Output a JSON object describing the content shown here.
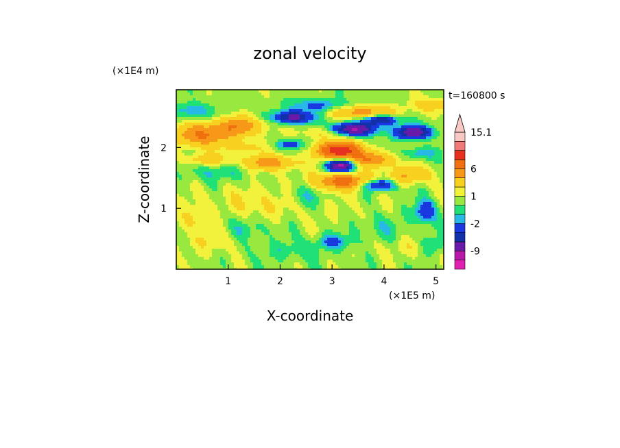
{
  "chart_data": {
    "type": "heatmap",
    "title": "zonal velocity",
    "xlabel": "X-coordinate",
    "ylabel": "Z-coordinate",
    "x_scale_label": "(×1E5 m)",
    "y_scale_label": "(×1E4 m)",
    "time_label": "t=160800 s",
    "x_ticks": [
      "1",
      "2",
      "3",
      "4",
      "5"
    ],
    "y_ticks": [
      "1",
      "2"
    ],
    "xlim": [
      0,
      5.15
    ],
    "ylim": [
      0,
      2.95
    ],
    "colorbar": {
      "levels": [
        -15.1,
        -12,
        -9,
        -6,
        -4,
        -2,
        -1,
        0,
        1,
        2,
        4,
        6,
        9,
        12,
        15.1
      ],
      "colors": [
        "#e020b0",
        "#b818a8",
        "#6a1aa8",
        "#1230a8",
        "#1a38e0",
        "#28b8e8",
        "#20e078",
        "#98e840",
        "#f2f23c",
        "#f8d020",
        "#f89818",
        "#f07010",
        "#e83020",
        "#f27a78",
        "#f8c8c4"
      ],
      "labels": [
        "15.1",
        "6",
        "1",
        "-2",
        "-9"
      ],
      "label_values": [
        15.1,
        6,
        1,
        -2,
        -9
      ],
      "extend": "max"
    },
    "grid": false
  }
}
